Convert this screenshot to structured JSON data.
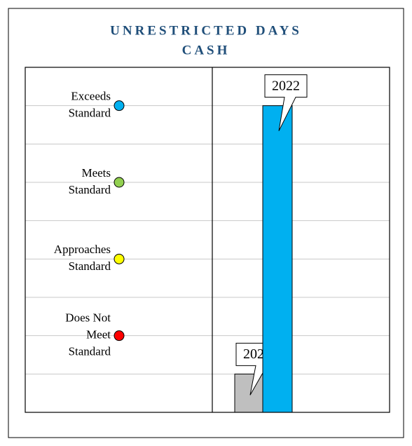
{
  "chart_data": {
    "type": "bar",
    "title": [
      "UNRESTRICTED DAYS",
      "CASH"
    ],
    "categories": [
      "2021",
      "2022"
    ],
    "values": [
      1,
      8
    ],
    "colors": [
      "#bfbfbf",
      "#00b0f0"
    ],
    "ylim": [
      0,
      9
    ],
    "yticks": [
      0,
      1,
      2,
      3,
      4,
      5,
      6,
      7,
      8,
      9
    ],
    "grid": true,
    "levels": [
      {
        "label": [
          "Exceeds",
          "Standard"
        ],
        "color": "#00b0f0",
        "value": 8
      },
      {
        "label": [
          "Meets",
          "Standard"
        ],
        "color": "#92d050",
        "value": 6
      },
      {
        "label": [
          "Approaches",
          "Standard"
        ],
        "color": "#ffff00",
        "value": 4
      },
      {
        "label": [
          "Does Not",
          "Meet",
          "Standard"
        ],
        "color": "#ff0000",
        "value": 2
      }
    ]
  }
}
